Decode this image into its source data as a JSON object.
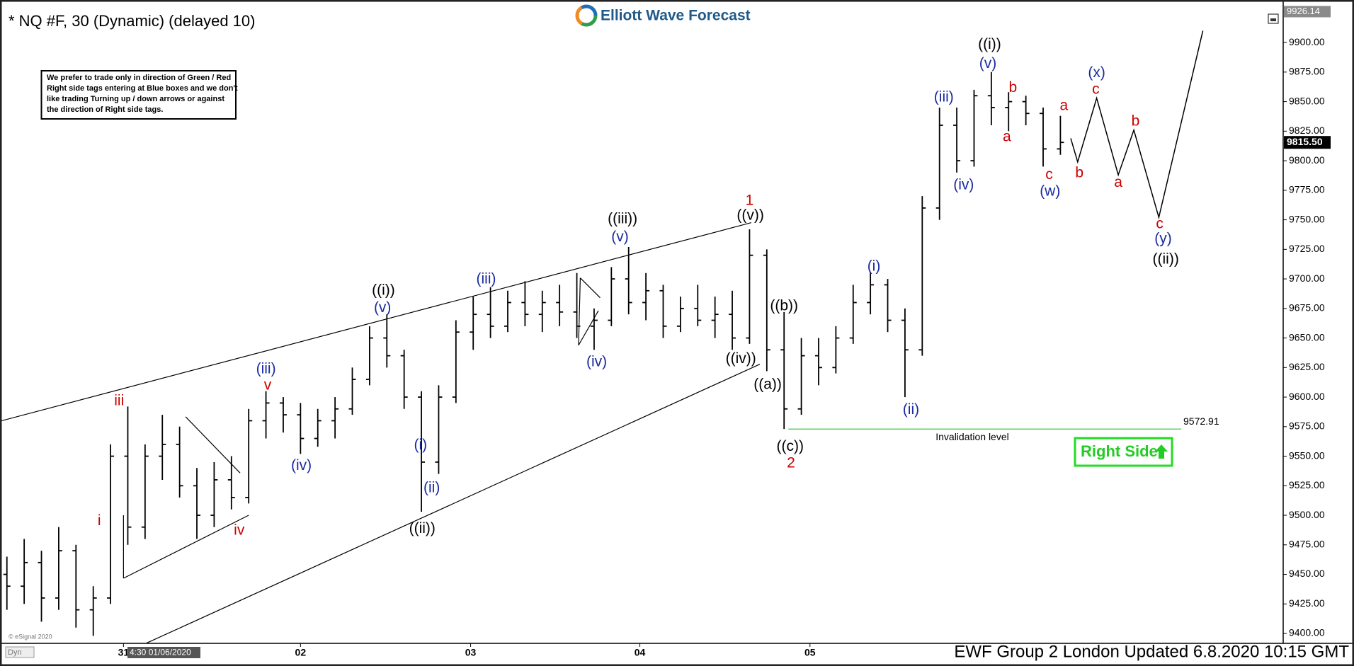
{
  "chart_data": {
    "type": "ohlc",
    "title": "* NQ #F, 30 (Dynamic) (delayed 10)",
    "brand": "Elliott Wave Forecast",
    "note": [
      "We prefer to trade only in direction of Green / Red",
      "Right side tags entering at Blue boxes and we don't",
      "like trading Turning up / down arrows or against",
      "the direction of Right side tags."
    ],
    "footer": "EWF Group 2 London Updated 6.8.2020 10:15 GMT",
    "copyright": "© eSignal 2020",
    "mode_label": "Dyn",
    "cursor_label": "4:30 01/06/2020",
    "right_side_label": "Right Side",
    "color": "#000000",
    "categories": [
      "31",
      "02",
      "03",
      "04",
      "05"
    ],
    "ylim": [
      9392,
      9930
    ],
    "yticks": [
      {
        "value": 9400,
        "label": "9400.00"
      },
      {
        "value": 9425,
        "label": "9425.00"
      },
      {
        "value": 9450,
        "label": "9450.00"
      },
      {
        "value": 9475,
        "label": "9475.00"
      },
      {
        "value": 9500,
        "label": "9500.00"
      },
      {
        "value": 9525,
        "label": "9525.00"
      },
      {
        "value": 9550,
        "label": "9550.00"
      },
      {
        "value": 9575,
        "label": "9575.00"
      },
      {
        "value": 9600,
        "label": "9600.00"
      },
      {
        "value": 9625,
        "label": "9625.00"
      },
      {
        "value": 9650,
        "label": "9650.00"
      },
      {
        "value": 9675,
        "label": "9675.00"
      },
      {
        "value": 9700,
        "label": "9700.00"
      },
      {
        "value": 9725,
        "label": "9725.00"
      },
      {
        "value": 9750,
        "label": "9750.00"
      },
      {
        "value": 9775,
        "label": "9775.00"
      },
      {
        "value": 9800,
        "label": "9800.00"
      },
      {
        "value": 9825,
        "label": "9825.00"
      },
      {
        "value": 9850,
        "label": "9850.00"
      },
      {
        "value": 9875,
        "label": "9875.00"
      },
      {
        "value": 9900,
        "label": "9900.00"
      }
    ],
    "ohlc": {
      "open": [
        9450,
        9440,
        9460,
        9430,
        9470,
        9420,
        9430,
        9550,
        9490,
        9550,
        9560,
        9525,
        9500,
        9530,
        9515,
        9580,
        9595,
        9585,
        9565,
        9580,
        9590,
        9615,
        9650,
        9635,
        9600,
        9545,
        9600,
        9655,
        9670,
        9660,
        9680,
        9670,
        9680,
        9672,
        9660,
        9665,
        9700,
        9680,
        9690,
        9660,
        9675,
        9665,
        9670,
        9650,
        9720,
        9640,
        9590,
        9635,
        9625,
        9650,
        9680,
        9695,
        9665,
        9640,
        9760,
        9830,
        9800,
        9855,
        9845,
        9850,
        9840,
        9810
      ],
      "high": [
        9465,
        9480,
        9470,
        9490,
        9475,
        9440,
        9560,
        9592,
        9560,
        9585,
        9575,
        9540,
        9545,
        9550,
        9590,
        9605,
        9600,
        9595,
        9590,
        9600,
        9625,
        9660,
        9670,
        9640,
        9605,
        9610,
        9665,
        9685,
        9693,
        9690,
        9698,
        9690,
        9695,
        9705,
        9675,
        9710,
        9727,
        9705,
        9695,
        9685,
        9695,
        9685,
        9690,
        9742,
        9725,
        9672,
        9650,
        9650,
        9660,
        9695,
        9706,
        9700,
        9675,
        9770,
        9845,
        9845,
        9860,
        9875,
        9858,
        9855,
        9845,
        9838
      ],
      "low": [
        9420,
        9425,
        9410,
        9420,
        9405,
        9398,
        9425,
        9475,
        9480,
        9530,
        9515,
        9480,
        9490,
        9505,
        9510,
        9565,
        9570,
        9552,
        9558,
        9565,
        9585,
        9610,
        9625,
        9590,
        9503,
        9535,
        9595,
        9640,
        9650,
        9655,
        9660,
        9655,
        9660,
        9650,
        9640,
        9660,
        9670,
        9665,
        9650,
        9655,
        9660,
        9650,
        9640,
        9645,
        9622,
        9573,
        9585,
        9610,
        9620,
        9645,
        9670,
        9655,
        9600,
        9635,
        9750,
        9790,
        9795,
        9830,
        9825,
        9830,
        9795,
        9805
      ],
      "close": [
        9440,
        9460,
        9430,
        9470,
        9420,
        9430,
        9550,
        9490,
        9550,
        9560,
        9525,
        9500,
        9530,
        9515,
        9580,
        9595,
        9585,
        9565,
        9580,
        9590,
        9615,
        9650,
        9635,
        9600,
        9545,
        9600,
        9655,
        9670,
        9660,
        9680,
        9670,
        9680,
        9672,
        9660,
        9665,
        9700,
        9680,
        9690,
        9660,
        9675,
        9665,
        9670,
        9650,
        9720,
        9640,
        9590,
        9635,
        9625,
        9650,
        9680,
        9695,
        9665,
        9640,
        9760,
        9830,
        9800,
        9855,
        9845,
        9850,
        9840,
        9810,
        9815.5
      ]
    },
    "last_price": {
      "value": 9815.5,
      "label": "9815.50"
    },
    "high_marker": 9926.14,
    "invalidation": {
      "value": 9572.91,
      "label": "Invalidation level",
      "color": "#66cc66"
    },
    "projection": {
      "values": [
        9819,
        9799,
        9853,
        9788,
        9826,
        9752,
        9910
      ],
      "color": "#000000"
    },
    "annotations": [
      {
        "text": "iii",
        "color": "#cc0000"
      },
      {
        "text": "i",
        "color": "#cc0000"
      },
      {
        "text": "(iii)",
        "color": "#1a2aa0"
      },
      {
        "text": "v",
        "color": "#cc0000"
      },
      {
        "text": "iv",
        "color": "#cc0000"
      },
      {
        "text": "(iv)",
        "color": "#1a2aa0"
      },
      {
        "text": "((i))",
        "color": "#000000"
      },
      {
        "text": "(v)",
        "color": "#1a2aa0"
      },
      {
        "text": "(i)",
        "color": "#1a2aa0"
      },
      {
        "text": "(ii)",
        "color": "#1a2aa0"
      },
      {
        "text": "((ii))",
        "color": "#000000"
      },
      {
        "text": "(iii)",
        "color": "#1a2aa0"
      },
      {
        "text": "(iv)",
        "color": "#1a2aa0"
      },
      {
        "text": "((iii))",
        "color": "#000000"
      },
      {
        "text": "(v)",
        "color": "#1a2aa0"
      },
      {
        "text": "1",
        "color": "#cc0000"
      },
      {
        "text": "((v))",
        "color": "#000000"
      },
      {
        "text": "((iv))",
        "color": "#000000"
      },
      {
        "text": "((a))",
        "color": "#000000"
      },
      {
        "text": "((b))",
        "color": "#000000"
      },
      {
        "text": "((c))",
        "color": "#000000"
      },
      {
        "text": "2",
        "color": "#cc0000"
      },
      {
        "text": "(i)",
        "color": "#1a2aa0"
      },
      {
        "text": "(ii)",
        "color": "#1a2aa0"
      },
      {
        "text": "(iii)",
        "color": "#1a2aa0"
      },
      {
        "text": "(iv)",
        "color": "#1a2aa0"
      },
      {
        "text": "((i))",
        "color": "#000000"
      },
      {
        "text": "(v)",
        "color": "#1a2aa0"
      },
      {
        "text": "b",
        "color": "#cc0000"
      },
      {
        "text": "a",
        "color": "#cc0000"
      },
      {
        "text": "a",
        "color": "#cc0000"
      },
      {
        "text": "c",
        "color": "#cc0000"
      },
      {
        "text": "(w)",
        "color": "#1a2aa0"
      },
      {
        "text": "b",
        "color": "#cc0000"
      },
      {
        "text": "(x)",
        "color": "#1a2aa0"
      },
      {
        "text": "c",
        "color": "#cc0000"
      },
      {
        "text": "a",
        "color": "#cc0000"
      },
      {
        "text": "b",
        "color": "#cc0000"
      },
      {
        "text": "c",
        "color": "#cc0000"
      },
      {
        "text": "(y)",
        "color": "#1a2aa0"
      },
      {
        "text": "((ii))",
        "color": "#000000"
      }
    ]
  }
}
